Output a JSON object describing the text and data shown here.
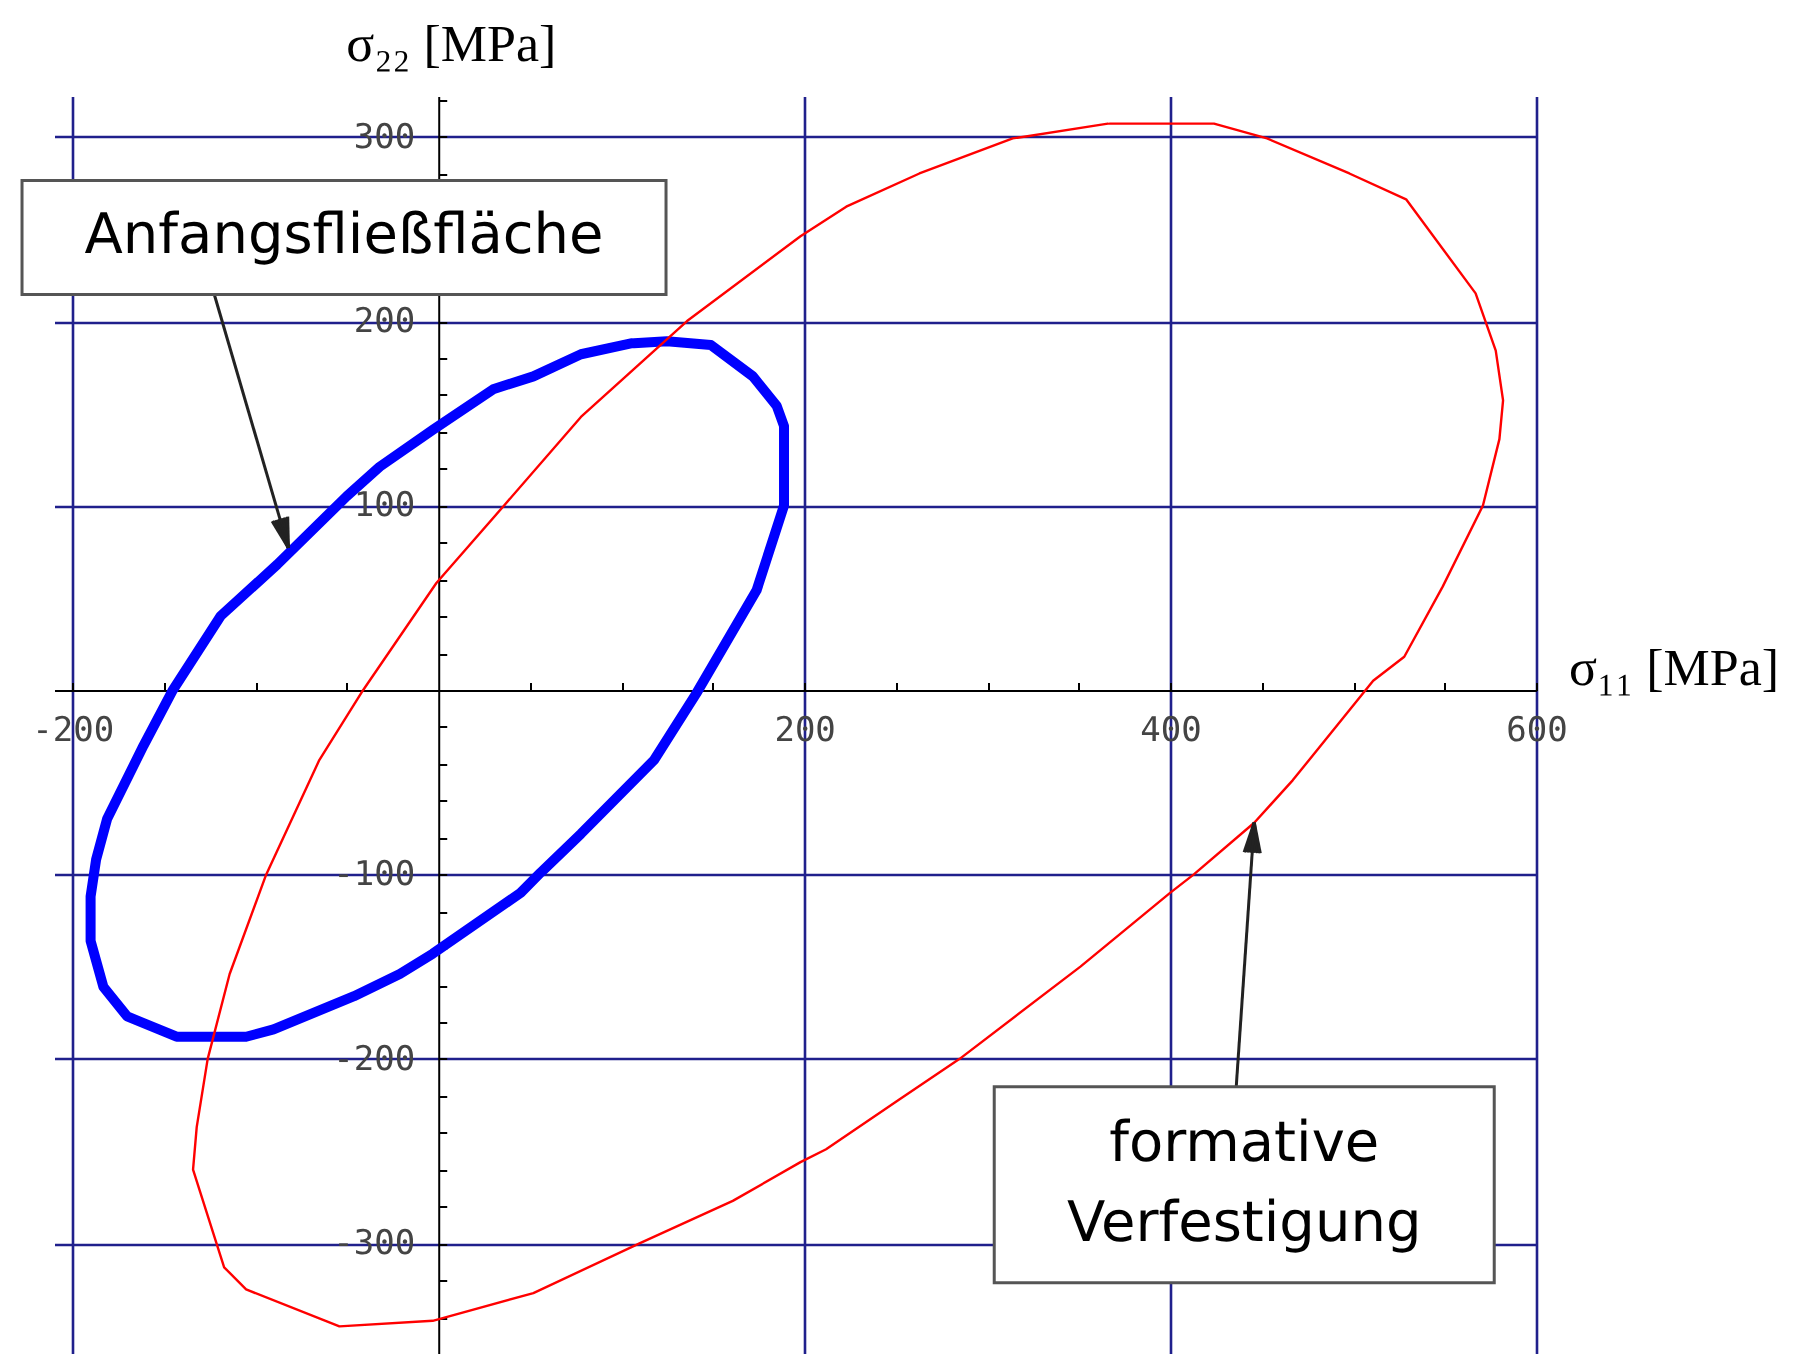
{
  "chart_data": {
    "type": "line",
    "xlabel": "σ₁₁ [MPa]",
    "ylabel": "σ₂₂ [MPa]",
    "xlim": [
      -210,
      600
    ],
    "ylim": [
      -360,
      322
    ],
    "xticks": [
      -200,
      {
        "value": -150,
        "label": null
      },
      {
        "value": -100,
        "label": null
      },
      {
        "value": -50,
        "label": null
      },
      {
        "value": 50,
        "label": null
      },
      {
        "value": 100,
        "label": null
      },
      {
        "value": 150,
        "label": null
      },
      200,
      {
        "value": 250,
        "label": null
      },
      {
        "value": 300,
        "label": null
      },
      {
        "value": 350,
        "label": null
      },
      400,
      {
        "value": 450,
        "label": null
      },
      {
        "value": 500,
        "label": null
      },
      {
        "value": 550,
        "label": null
      },
      600
    ],
    "yticks": [
      {
        "value": -340,
        "label": null
      },
      {
        "value": -320,
        "label": null
      },
      -300,
      {
        "value": -280,
        "label": null
      },
      {
        "value": -260,
        "label": null
      },
      {
        "value": -240,
        "label": null
      },
      {
        "value": -220,
        "label": null
      },
      -200,
      {
        "value": -180,
        "label": null
      },
      {
        "value": -160,
        "label": null
      },
      {
        "value": -140,
        "label": null
      },
      {
        "value": -120,
        "label": null
      },
      -100,
      {
        "value": -80,
        "label": null
      },
      {
        "value": -60,
        "label": null
      },
      {
        "value": -40,
        "label": null
      },
      {
        "value": -20,
        "label": null
      },
      {
        "value": 20,
        "label": null
      },
      {
        "value": 40,
        "label": null
      },
      {
        "value": 60,
        "label": null
      },
      {
        "value": 80,
        "label": null
      },
      100,
      {
        "value": 120,
        "label": null
      },
      {
        "value": 140,
        "label": null
      },
      {
        "value": 160,
        "label": null
      },
      {
        "value": 180,
        "label": null
      },
      200,
      {
        "value": 220,
        "label": null
      },
      {
        "value": 240,
        "label": null
      },
      {
        "value": 260,
        "label": null
      },
      {
        "value": 280,
        "label": null
      },
      300,
      {
        "value": 320,
        "label": null
      }
    ],
    "grid": true,
    "series": [
      {
        "color": "#0000ff",
        "x": [
          107,
          125,
          149,
          172,
          185,
          189,
          189,
          174,
          141,
          118,
          78,
          56,
          45,
          -3,
          -21,
          -46,
          -90,
          -105,
          -143,
          -170,
          -183,
          -190,
          -190,
          -187,
          -181,
          -161,
          -145,
          -119,
          -88,
          -50,
          -32,
          -3,
          30,
          52,
          78,
          106
        ],
        "values": [
          188,
          189,
          187,
          170,
          154,
          143,
          100,
          54,
          -2,
          -38,
          -78,
          -99,
          -110,
          -143,
          -154,
          -166,
          -184,
          -188,
          -188,
          -177,
          -161,
          -136,
          -112,
          -92,
          -70,
          -30,
          0,
          40,
          68,
          105,
          121,
          141,
          163,
          170,
          182,
          188
        ]
      },
      {
        "color": "#ff0000",
        "x": [
          367,
          424,
          453,
          498,
          529,
          567,
          578,
          582,
          580,
          571,
          549,
          528,
          511,
          467,
          446,
          413,
          400,
          351,
          285,
          252,
          212,
          198,
          161,
          110,
          52,
          -3,
          -54,
          -105,
          -117,
          -134,
          -132,
          -126,
          -114,
          -94,
          -65,
          -41,
          -1,
          36,
          78,
          136,
          198,
          223,
          263,
          314,
          366
        ],
        "values": [
          307,
          307,
          299,
          280,
          266,
          215,
          184,
          157,
          136,
          100,
          56,
          18,
          5,
          -49,
          -72,
          -100,
          -110,
          -150,
          -200,
          -222,
          -249,
          -256,
          -277,
          -300,
          -327,
          -342,
          -345,
          -325,
          -313,
          -260,
          -237,
          -200,
          -154,
          -100,
          -38,
          0,
          58,
          100,
          148,
          200,
          246,
          262,
          280,
          299,
          307
        ]
      }
    ],
    "annotations": [
      {
        "text": "Anfangsfließfläche",
        "x": -81,
        "y": 74
      },
      {
        "text": "formative\nVerfestigung",
        "x": 446,
        "y": -72
      }
    ]
  }
}
